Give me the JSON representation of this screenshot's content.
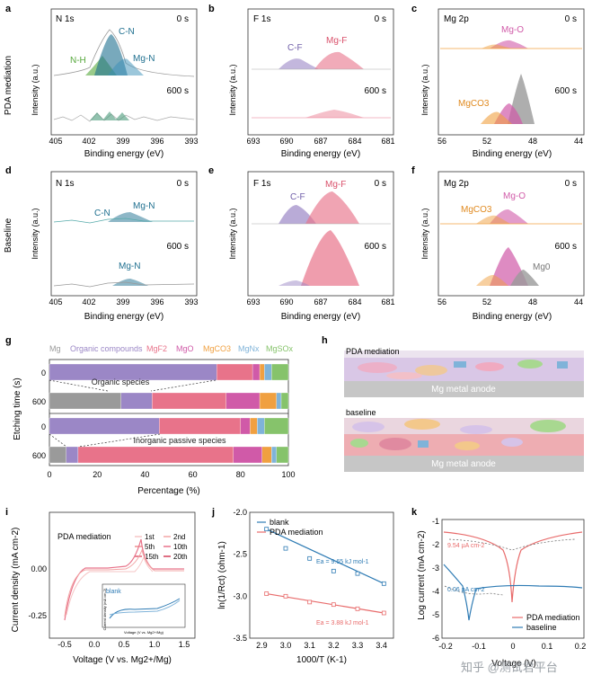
{
  "colors": {
    "teal": "#1e6f8f",
    "ngreen": "#56a83c",
    "pink": "#e8738a",
    "purple": "#9b87c6",
    "gray": "#9a9a9a",
    "orange": "#f0a040",
    "mgo": "#d05aa8",
    "yellow": "#d9c25a",
    "green": "#86c36b",
    "blue": "#7fb3d9",
    "salmon": "#f2a5a5",
    "red": "#e86b6b",
    "navy": "#2e7bb4",
    "lightblue": "#a6cbe3"
  },
  "panels": {
    "a": {
      "letter": "a",
      "label": "N 1s",
      "time_top": "0 s",
      "time_bottom": "600 s",
      "ylabel": "Intensity (a.u.)",
      "xlabel": "Binding energy (eV)",
      "ticks": [
        "405",
        "402",
        "399",
        "396",
        "393"
      ],
      "peaks": [
        "C-N",
        "Mg-N",
        "N-H"
      ],
      "row_label": "PDA mediation"
    },
    "b": {
      "letter": "b",
      "label": "F 1s",
      "time_top": "0 s",
      "time_bottom": "600 s",
      "ylabel": "Intensity (a.u.)",
      "xlabel": "Binding energy (eV)",
      "ticks": [
        "693",
        "690",
        "687",
        "684",
        "681"
      ],
      "peaks": [
        "C-F",
        "Mg-F"
      ]
    },
    "c": {
      "letter": "c",
      "label": "Mg 2p",
      "time_top": "0 s",
      "time_bottom": "600 s",
      "ylabel": "Intensity (a.u.)",
      "xlabel": "Binding energy (eV)",
      "ticks": [
        "56",
        "52",
        "48",
        "44"
      ],
      "peaks": [
        "Mg-O",
        "MgCO3"
      ]
    },
    "d": {
      "letter": "d",
      "label": "N 1s",
      "time_top": "0 s",
      "time_bottom": "600 s",
      "ylabel": "Intensity (a.u.)",
      "xlabel": "Binding energy (eV)",
      "ticks": [
        "405",
        "402",
        "399",
        "396",
        "393"
      ],
      "peaks": [
        "C-N",
        "Mg-N",
        "Mg-N"
      ],
      "row_label": "Baseline"
    },
    "e": {
      "letter": "e",
      "label": "F 1s",
      "time_top": "0 s",
      "time_bottom": "600 s",
      "ylabel": "Intensity (a.u.)",
      "xlabel": "Binding energy (eV)",
      "ticks": [
        "693",
        "690",
        "687",
        "684",
        "681"
      ],
      "peaks": [
        "C-F",
        "Mg-F"
      ]
    },
    "f": {
      "letter": "f",
      "label": "Mg 2p",
      "time_top": "0 s",
      "time_bottom": "600 s",
      "ylabel": "Intensity (a.u.)",
      "xlabel": "Binding energy (eV)",
      "ticks": [
        "56",
        "52",
        "48",
        "44"
      ],
      "peaks": [
        "Mg-O",
        "MgCO3",
        "Mg0"
      ]
    },
    "h": {
      "letter": "h",
      "top_title": "PDA mediation",
      "bottom_title": "baseline",
      "anode": "Mg metal anode"
    }
  },
  "chart_data": [
    {
      "panel": "g",
      "type": "bar",
      "orientation": "horizontal",
      "title": "",
      "legend": [
        "Mg",
        "Organic compounds",
        "MgF2",
        "MgO",
        "MgCO3",
        "MgNx",
        "MgSOx"
      ],
      "categories": [
        "0",
        "600",
        "0",
        "600"
      ],
      "series": [
        {
          "name": "Mg",
          "values": [
            0,
            30,
            0,
            7
          ]
        },
        {
          "name": "Organic compounds",
          "values": [
            70,
            13,
            46,
            5
          ]
        },
        {
          "name": "MgF2",
          "values": [
            15,
            31,
            34,
            65
          ]
        },
        {
          "name": "MgO",
          "values": [
            3,
            14,
            4,
            12
          ]
        },
        {
          "name": "MgCO3",
          "values": [
            2,
            7,
            3,
            4
          ]
        },
        {
          "name": "MgNx",
          "values": [
            3,
            2,
            3,
            2
          ]
        },
        {
          "name": "MgSOx",
          "values": [
            7,
            3,
            10,
            5
          ]
        }
      ],
      "annotations": [
        "Organic species",
        "Inorganic passive species"
      ],
      "xlabel": "Percentage (%)",
      "ylabel": "Etching time (s)",
      "xlim": [
        0,
        100
      ],
      "xticks": [
        "0",
        "20",
        "40",
        "60",
        "80",
        "100"
      ]
    },
    {
      "panel": "i",
      "type": "line",
      "title": "PDA mediation",
      "legend": [
        "1st",
        "2nd",
        "5th",
        "10th",
        "15th",
        "20th"
      ],
      "inset_label": "blank",
      "inset_xlabel": "Voltage (V vs. Mg2+/Mg)",
      "inset_ylabel": "Current density (mA cm-2)",
      "xlabel": "Voltage (V vs. Mg2+/Mg)",
      "ylabel": "Current density (mA cm-2)",
      "xlim": [
        -0.7,
        1.7
      ],
      "ylim": [
        -0.35,
        0.22
      ],
      "xticks": [
        "-0.5",
        "0.0",
        "0.5",
        "1.0",
        "1.5"
      ],
      "yticks": [
        "0.00",
        "-0.25"
      ]
    },
    {
      "panel": "j",
      "type": "scatter",
      "series": [
        {
          "name": "blank",
          "x": [
            2.92,
            3.0,
            3.1,
            3.2,
            3.3,
            3.41
          ],
          "y": [
            -2.2,
            -2.43,
            -2.55,
            -2.7,
            -2.73,
            -2.85
          ]
        },
        {
          "name": "PDA mediation",
          "x": [
            2.92,
            3.0,
            3.1,
            3.2,
            3.3,
            3.41
          ],
          "y": [
            -2.97,
            -3.0,
            -3.07,
            -3.1,
            -3.15,
            -3.2
          ]
        }
      ],
      "annotations": [
        "Ea = 9.65 kJ mol-1",
        "Ea = 3.88 kJ mol-1"
      ],
      "xlabel": "1000/T (K-1)",
      "ylabel": "ln(1/Rct) (ohm-1)",
      "xlim": [
        2.85,
        3.45
      ],
      "ylim": [
        -3.5,
        -2.0
      ],
      "xticks": [
        "2.9",
        "3.0",
        "3.1",
        "3.2",
        "3.3",
        "3.4"
      ],
      "yticks": [
        "-2.0",
        "-2.5",
        "-3.0",
        "-3.5"
      ]
    },
    {
      "panel": "k",
      "type": "line",
      "series": [
        {
          "name": "PDA mediation"
        },
        {
          "name": "baseline"
        }
      ],
      "annotations": [
        "9.54 µA cm-2",
        "0.06 µA cm-2"
      ],
      "xlabel": "Voltage (V)",
      "ylabel": "Log current (mA cm-2)",
      "xlim": [
        -0.2,
        0.2
      ],
      "ylim": [
        -6,
        -1
      ],
      "xticks": [
        "-0.2",
        "-0.1",
        "0",
        "0.1",
        "0.2"
      ],
      "yticks": [
        "-1",
        "-2",
        "-3",
        "-4",
        "-5",
        "-6"
      ]
    }
  ],
  "watermark": "知乎 @测试君平台"
}
